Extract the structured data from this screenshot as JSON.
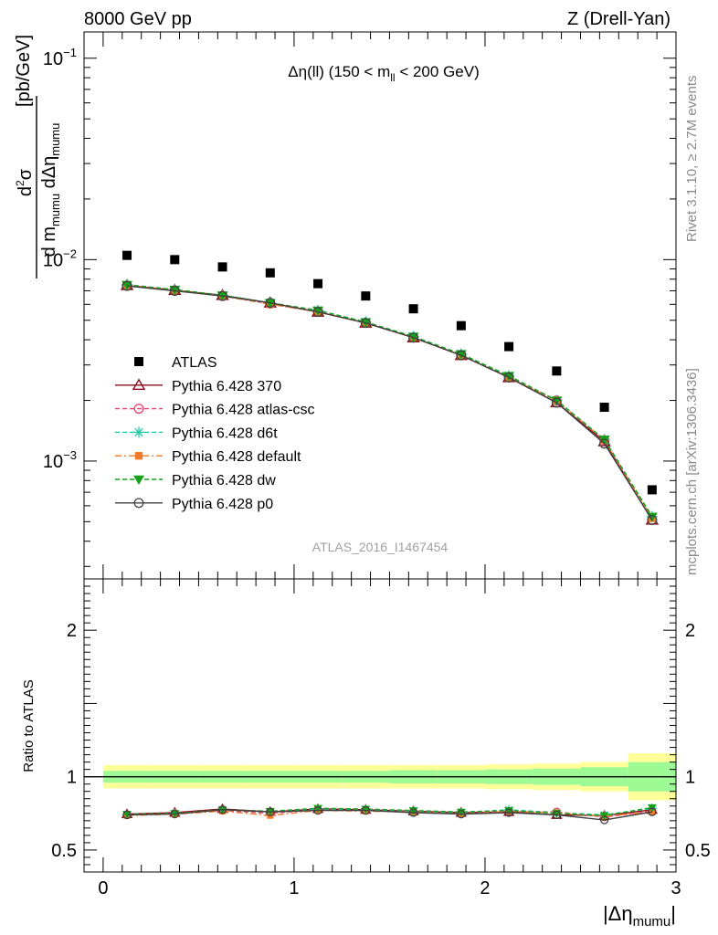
{
  "header": {
    "left": "8000 GeV pp",
    "right": "Z (Drell-Yan)"
  },
  "side_labels": {
    "rivet": "Rivet 3.1.10, ≥ 2.7M events",
    "mcplots": "mcplots.cern.ch [arXiv:1306.3436]"
  },
  "chart_data": [
    {
      "type": "scatter",
      "panel": "main",
      "title": "Δη(ll) (150 < m_ll < 200 GeV)",
      "title_parts": {
        "pre": "Δη(ll) (150 < m",
        "sub": "ll",
        "post": " < 200 GeV)"
      },
      "ylabel": "d²σ / d m_mumu dΔη_mumu [pb/GeV]",
      "ylabel_parts": {
        "num": "d",
        "num_sup": "2",
        "num_sym": "σ",
        "den": "d m",
        "den_sub1": "mumu",
        "den_mid": " dΔη",
        "den_sub2": "mumu",
        "unit": "[pb/GeV]"
      },
      "yscale": "log",
      "ylim": [
        0.00026,
        0.135
      ],
      "xlim": [
        -0.1,
        3.0
      ],
      "y_ticks": [
        {
          "value": 0.1,
          "base": "10",
          "exp": "−1"
        },
        {
          "value": 0.01,
          "base": "10",
          "exp": "−2"
        },
        {
          "value": 0.001,
          "base": "10",
          "exp": "−3"
        }
      ],
      "watermark": "ATLAS_2016_I1467454",
      "legend_position": "left",
      "x": [
        0.125,
        0.375,
        0.625,
        0.875,
        1.125,
        1.375,
        1.625,
        1.875,
        2.125,
        2.375,
        2.625,
        2.875
      ],
      "data": {
        "name": "ATLAS",
        "values": [
          0.0105,
          0.01,
          0.0092,
          0.0086,
          0.0076,
          0.0066,
          0.0057,
          0.0047,
          0.0037,
          0.0028,
          0.00185,
          0.00072
        ]
      },
      "series": [
        {
          "name": "Pythia 6.428 370",
          "color": "#8b0d1a",
          "marker": "triangle-open",
          "dash": "",
          "values": [
            0.00745,
            0.00705,
            0.00665,
            0.0061,
            0.0055,
            0.00485,
            0.0041,
            0.00335,
            0.0026,
            0.00195,
            0.00125,
            0.00051
          ]
        },
        {
          "name": "Pythia 6.428 atlas-csc",
          "color": "#e8436d",
          "marker": "circle-open",
          "dash": "5,3",
          "values": [
            0.00745,
            0.00705,
            0.0066,
            0.00605,
            0.0055,
            0.00485,
            0.0041,
            0.00335,
            0.0026,
            0.002,
            0.00127,
            0.00051
          ]
        },
        {
          "name": "Pythia 6.428 d6t",
          "color": "#1ec8a0",
          "marker": "asterisk",
          "dash": "5,3",
          "values": [
            0.0075,
            0.0071,
            0.00665,
            0.0061,
            0.0056,
            0.0049,
            0.00415,
            0.0034,
            0.00265,
            0.002,
            0.00128,
            0.00053
          ]
        },
        {
          "name": "Pythia 6.428 default",
          "color": "#f07b2a",
          "marker": "square",
          "dash": "7,3,2,3",
          "values": [
            0.00745,
            0.00705,
            0.0066,
            0.006,
            0.0055,
            0.00485,
            0.0041,
            0.00335,
            0.0026,
            0.002,
            0.00127,
            0.00052
          ]
        },
        {
          "name": "Pythia 6.428 dw",
          "color": "#17a01a",
          "marker": "triangle-down",
          "dash": "5,3",
          "values": [
            0.0075,
            0.0071,
            0.00665,
            0.0061,
            0.0056,
            0.0049,
            0.00415,
            0.0034,
            0.00265,
            0.002,
            0.00128,
            0.00053
          ]
        },
        {
          "name": "Pythia 6.428 p0",
          "color": "#404040",
          "marker": "circle-open",
          "dash": "",
          "values": [
            0.0074,
            0.007,
            0.0066,
            0.0061,
            0.0055,
            0.00485,
            0.0041,
            0.00335,
            0.0026,
            0.00195,
            0.00122,
            0.00051
          ]
        }
      ]
    },
    {
      "type": "scatter",
      "panel": "ratio",
      "ylabel": "Ratio to ATLAS",
      "xlabel": "|Δη_mumu|",
      "xlabel_parts": {
        "pre": "|Δη",
        "sub": "mumu",
        "post": "|"
      },
      "xlim": [
        -0.1,
        3.0
      ],
      "ylim": [
        0.35,
        2.35
      ],
      "x_ticks": [
        "0",
        "1",
        "2",
        "3"
      ],
      "y_ticks": [
        "0.5",
        "1",
        "2"
      ],
      "band_colors": {
        "outer": "#ffff9a",
        "inner": "#9dfa95"
      },
      "band_edges": [
        0.0,
        0.25,
        0.5,
        0.75,
        1.0,
        1.25,
        1.5,
        1.75,
        2.0,
        2.25,
        2.5,
        2.75,
        3.0
      ],
      "band_outer": [
        0.08,
        0.08,
        0.08,
        0.08,
        0.08,
        0.08,
        0.08,
        0.08,
        0.085,
        0.09,
        0.1,
        0.16
      ],
      "band_inner": [
        0.04,
        0.04,
        0.04,
        0.04,
        0.04,
        0.04,
        0.045,
        0.045,
        0.05,
        0.055,
        0.065,
        0.1
      ],
      "x": [
        0.125,
        0.375,
        0.625,
        0.875,
        1.125,
        1.375,
        1.625,
        1.875,
        2.125,
        2.375,
        2.625,
        2.875
      ],
      "series": [
        {
          "name": "Pythia 6.428 370",
          "values": [
            0.745,
            0.755,
            0.78,
            0.76,
            0.78,
            0.775,
            0.765,
            0.755,
            0.76,
            0.74,
            0.735,
            0.775
          ]
        },
        {
          "name": "Pythia 6.428 atlas-csc",
          "values": [
            0.74,
            0.75,
            0.77,
            0.75,
            0.775,
            0.77,
            0.76,
            0.745,
            0.765,
            0.76,
            0.725,
            0.765
          ]
        },
        {
          "name": "Pythia 6.428 d6t",
          "values": [
            0.74,
            0.75,
            0.775,
            0.76,
            0.78,
            0.775,
            0.765,
            0.755,
            0.775,
            0.755,
            0.74,
            0.785
          ]
        },
        {
          "name": "Pythia 6.428 default",
          "values": [
            0.735,
            0.745,
            0.765,
            0.735,
            0.77,
            0.765,
            0.76,
            0.745,
            0.765,
            0.755,
            0.73,
            0.76
          ]
        },
        {
          "name": "Pythia 6.428 dw",
          "values": [
            0.745,
            0.75,
            0.775,
            0.765,
            0.785,
            0.78,
            0.77,
            0.76,
            0.77,
            0.75,
            0.735,
            0.79
          ]
        },
        {
          "name": "Pythia 6.428 p0",
          "values": [
            0.74,
            0.745,
            0.775,
            0.76,
            0.77,
            0.77,
            0.755,
            0.745,
            0.755,
            0.74,
            0.705,
            0.76
          ]
        }
      ]
    }
  ]
}
